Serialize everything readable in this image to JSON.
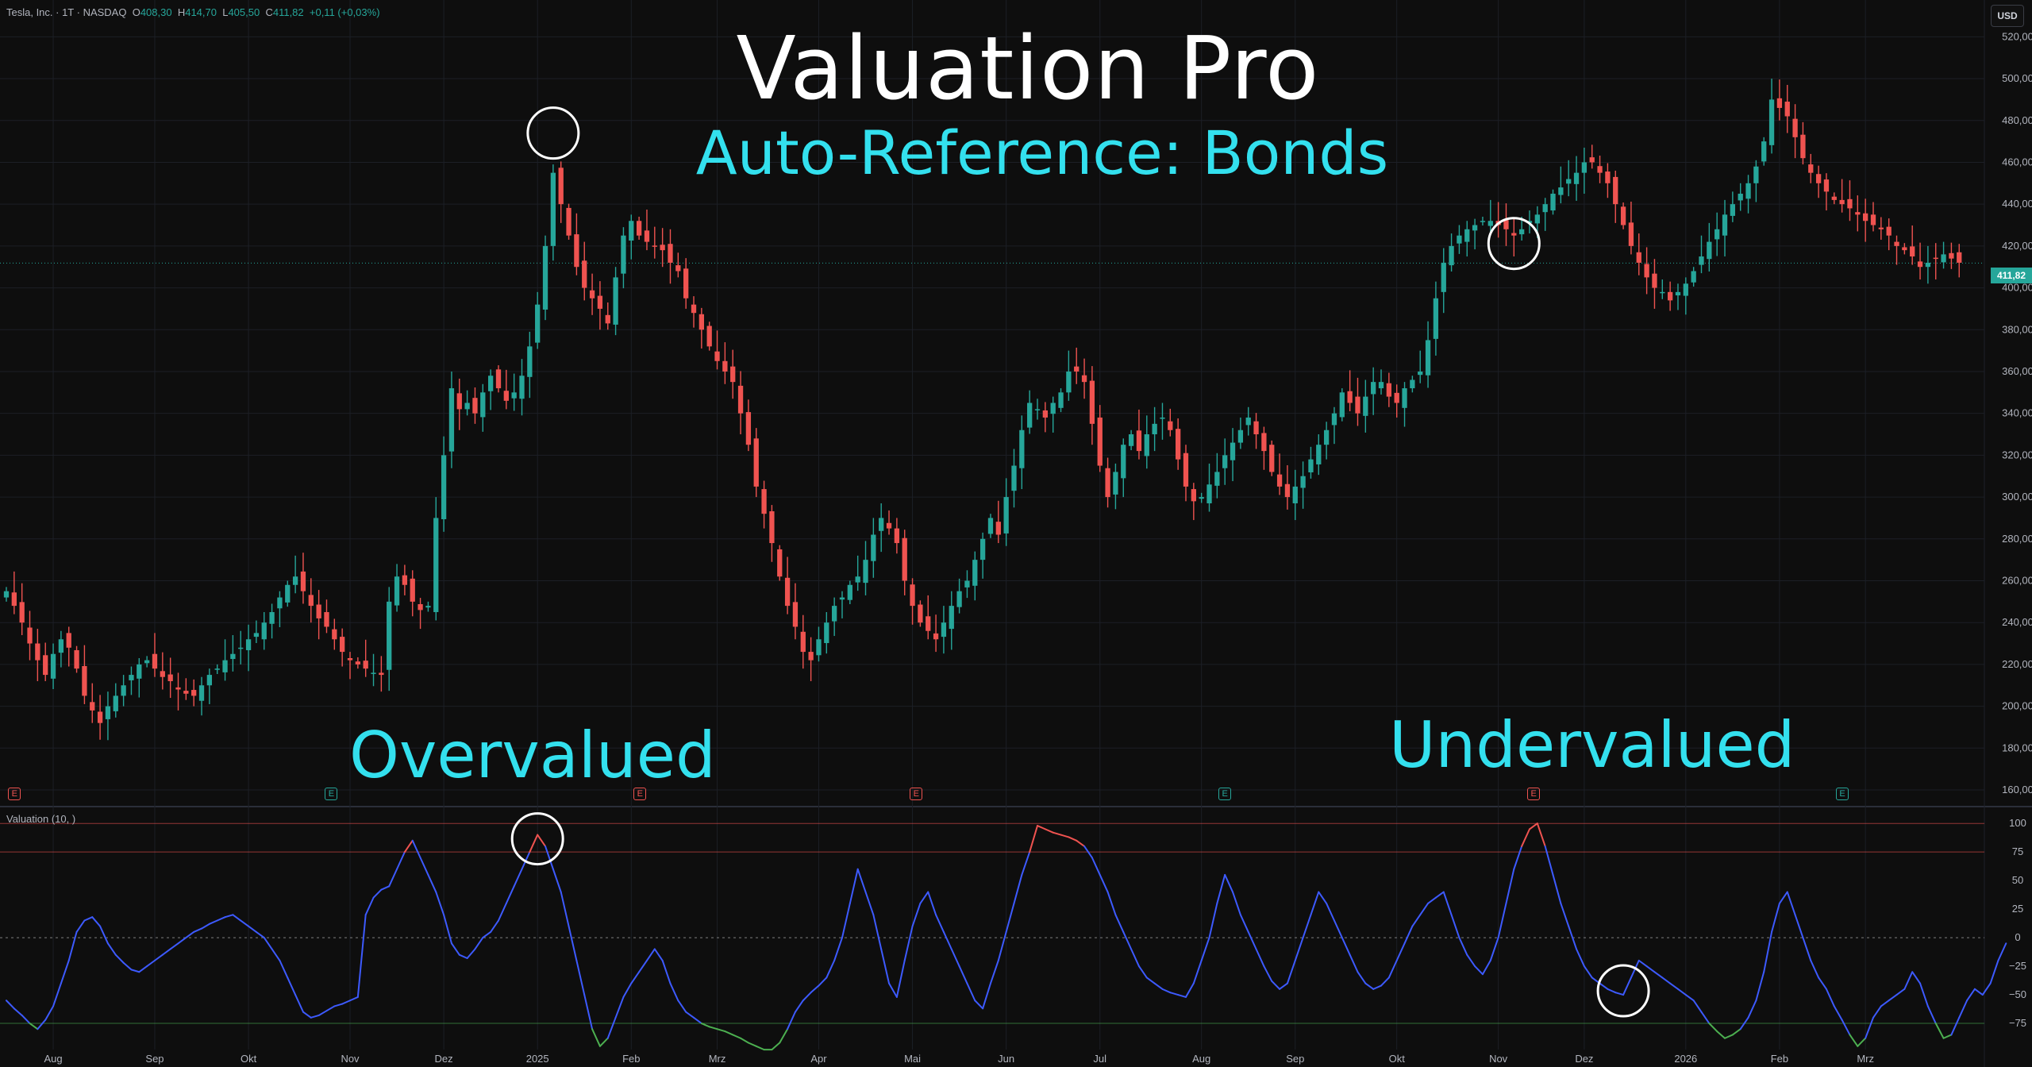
{
  "header": {
    "symbol": "Tesla, Inc. · 1T · NASDAQ",
    "o_label": "O",
    "o_value": "408,30",
    "h_label": "H",
    "h_value": "414,70",
    "l_label": "L",
    "l_value": "405,50",
    "c_label": "C",
    "c_value": "411,82",
    "change": "+0,11 (+0,03%)"
  },
  "currency": "USD",
  "last_price_label": "411,82",
  "overlay": {
    "title": "Valuation Pro",
    "subtitle": "Auto-Reference: Bonds",
    "overvalued": "Overvalued",
    "undervalued": "Undervalued"
  },
  "indicator_title": "Valuation (10, )",
  "colors": {
    "up": "#26a69a",
    "down": "#ef5350",
    "line": "#3d5afe",
    "overbought": "#ef5350",
    "oversold": "#4caf50",
    "annotation": "#33e0ee"
  },
  "earnings_markers": [
    {
      "index": 1,
      "label": "E",
      "kind": "neg"
    },
    {
      "index": 40,
      "label": "E",
      "kind": "pos"
    },
    {
      "index": 78,
      "label": "E",
      "kind": "neg"
    },
    {
      "index": 112,
      "label": "E",
      "kind": "neg"
    },
    {
      "index": 150,
      "label": "E",
      "kind": "pos"
    },
    {
      "index": 188,
      "label": "E",
      "kind": "neg"
    },
    {
      "index": 226,
      "label": "E",
      "kind": "pos"
    }
  ],
  "chart_data": [
    {
      "type": "candlestick",
      "title": "Tesla, Inc. · 1T · NASDAQ",
      "ylim": [
        160,
        530
      ],
      "yticks": [
        160,
        180,
        200,
        220,
        240,
        260,
        280,
        300,
        320,
        340,
        360,
        380,
        400,
        420,
        440,
        460,
        480,
        500,
        520
      ],
      "ytick_labels": [
        "160,00",
        "180,00",
        "200,00",
        "220,00",
        "240,00",
        "260,00",
        "280,00",
        "300,00",
        "320,00",
        "340,00",
        "360,00",
        "380,00",
        "400,00",
        "420,00",
        "440,00",
        "460,00",
        "480,00",
        "500,00",
        "520,00"
      ],
      "last_price": 411.82,
      "x_tick_labels": [
        {
          "label": "Aug",
          "index": 6
        },
        {
          "label": "Sep",
          "index": 19
        },
        {
          "label": "Okt",
          "index": 31
        },
        {
          "label": "Nov",
          "index": 44
        },
        {
          "label": "Dez",
          "index": 56
        },
        {
          "label": "2025",
          "index": 68
        },
        {
          "label": "Feb",
          "index": 80
        },
        {
          "label": "Mrz",
          "index": 91
        },
        {
          "label": "Apr",
          "index": 104
        },
        {
          "label": "Mai",
          "index": 116
        },
        {
          "label": "Jun",
          "index": 128
        },
        {
          "label": "Jul",
          "index": 140
        },
        {
          "label": "Aug",
          "index": 153
        },
        {
          "label": "Sep",
          "index": 165
        },
        {
          "label": "Okt",
          "index": 178
        },
        {
          "label": "Nov",
          "index": 191
        },
        {
          "label": "Dez",
          "index": 202
        },
        {
          "label": "2026",
          "index": 215
        },
        {
          "label": "Feb",
          "index": 227
        },
        {
          "label": "Mrz",
          "index": 238
        }
      ],
      "close": [
        255,
        248,
        240,
        230,
        222,
        215,
        225,
        232,
        228,
        218,
        205,
        198,
        192,
        200,
        205,
        210,
        215,
        220,
        222,
        218,
        214,
        212,
        208,
        206,
        205,
        210,
        215,
        218,
        222,
        225,
        228,
        232,
        235,
        240,
        245,
        252,
        258,
        262,
        255,
        248,
        242,
        238,
        232,
        226,
        222,
        220,
        218,
        216,
        215,
        250,
        262,
        258,
        250,
        246,
        248,
        290,
        320,
        352,
        342,
        345,
        340,
        350,
        358,
        352,
        346,
        350,
        358,
        372,
        392,
        420,
        455,
        440,
        425,
        410,
        400,
        395,
        390,
        383,
        405,
        425,
        432,
        425,
        422,
        420,
        418,
        412,
        408,
        395,
        388,
        380,
        372,
        365,
        360,
        355,
        340,
        325,
        305,
        292,
        278,
        262,
        248,
        238,
        226,
        222,
        232,
        240,
        248,
        252,
        258,
        262,
        270,
        282,
        290,
        285,
        278,
        260,
        248,
        240,
        236,
        232,
        240,
        248,
        255,
        260,
        270,
        280,
        290,
        282,
        300,
        315,
        332,
        345,
        342,
        338,
        345,
        350,
        360,
        360,
        355,
        335,
        315,
        300,
        312,
        325,
        330,
        322,
        330,
        335,
        338,
        332,
        318,
        305,
        298,
        300,
        306,
        312,
        320,
        326,
        332,
        338,
        330,
        322,
        312,
        305,
        300,
        305,
        310,
        318,
        325,
        332,
        340,
        350,
        345,
        340,
        348,
        355,
        355,
        348,
        345,
        352,
        356,
        360,
        375,
        395,
        412,
        420,
        425,
        428,
        430,
        432,
        432,
        430,
        428,
        425,
        428,
        432,
        435,
        440,
        445,
        448,
        452,
        455,
        460,
        460,
        455,
        450,
        440,
        430,
        420,
        412,
        405,
        400,
        398,
        394,
        398,
        402,
        408,
        415,
        422,
        428,
        435,
        440,
        445,
        450,
        458,
        470,
        490,
        486,
        482,
        472,
        462,
        455,
        450,
        446,
        442,
        440,
        438,
        435,
        432,
        430,
        428,
        425,
        420,
        418,
        415,
        410,
        412,
        414,
        416,
        414,
        412
      ],
      "x_count": 240
    },
    {
      "type": "line",
      "title": "Valuation (10, )",
      "ylim": [
        -100,
        105
      ],
      "yticks": [
        100,
        75,
        50,
        25,
        0,
        -25,
        -50,
        -75
      ],
      "ytick_labels": [
        "100",
        "75",
        "50",
        "25",
        "0",
        "−25",
        "−50",
        "−75"
      ],
      "levels": {
        "overbought": 75,
        "zero": 0,
        "oversold": -75
      },
      "values": [
        -55,
        -62,
        -68,
        -75,
        -80,
        -72,
        -60,
        -40,
        -20,
        5,
        15,
        18,
        10,
        -5,
        -15,
        -22,
        -28,
        -30,
        -25,
        -20,
        -15,
        -10,
        -5,
        0,
        5,
        8,
        12,
        15,
        18,
        20,
        15,
        10,
        5,
        0,
        -10,
        -20,
        -35,
        -50,
        -65,
        -70,
        -68,
        -64,
        -60,
        -58,
        -55,
        -52,
        20,
        35,
        42,
        45,
        60,
        75,
        85,
        70,
        55,
        40,
        20,
        -5,
        -15,
        -18,
        -10,
        0,
        5,
        15,
        30,
        45,
        60,
        75,
        90,
        80,
        60,
        40,
        10,
        -20,
        -50,
        -80,
        -95,
        -88,
        -70,
        -52,
        -40,
        -30,
        -20,
        -10,
        -20,
        -40,
        -55,
        -65,
        -70,
        -75,
        -78,
        -80,
        -82,
        -85,
        -88,
        -92,
        -95,
        -98,
        -98,
        -92,
        -80,
        -65,
        -55,
        -48,
        -42,
        -35,
        -20,
        0,
        30,
        60,
        40,
        20,
        -10,
        -40,
        -52,
        -20,
        10,
        30,
        40,
        20,
        5,
        -10,
        -25,
        -40,
        -55,
        -62,
        -40,
        -20,
        5,
        30,
        55,
        75,
        98,
        95,
        92,
        90,
        88,
        85,
        80,
        70,
        55,
        40,
        20,
        5,
        -10,
        -25,
        -35,
        -40,
        -45,
        -48,
        -50,
        -52,
        -40,
        -20,
        0,
        30,
        55,
        40,
        20,
        5,
        -10,
        -25,
        -38,
        -45,
        -40,
        -20,
        0,
        20,
        40,
        30,
        15,
        0,
        -15,
        -30,
        -40,
        -45,
        -42,
        -35,
        -20,
        -5,
        10,
        20,
        30,
        35,
        40,
        20,
        0,
        -15,
        -25,
        -32,
        -20,
        0,
        30,
        60,
        80,
        95,
        100,
        80,
        55,
        30,
        10,
        -10,
        -25,
        -35,
        -40,
        -45,
        -48,
        -50,
        -35,
        -20,
        -25,
        -30,
        -35,
        -40,
        -45,
        -50,
        -55,
        -65,
        -75,
        -82,
        -88,
        -85,
        -80,
        -70,
        -55,
        -30,
        5,
        30,
        40,
        20,
        0,
        -20,
        -35,
        -45,
        -60,
        -72,
        -85,
        -95,
        -88,
        -70,
        -60,
        -55,
        -50,
        -45,
        -30,
        -40,
        -60,
        -75,
        -88,
        -85,
        -70,
        -55,
        -45,
        -50,
        -40,
        -20,
        -5
      ]
    }
  ]
}
